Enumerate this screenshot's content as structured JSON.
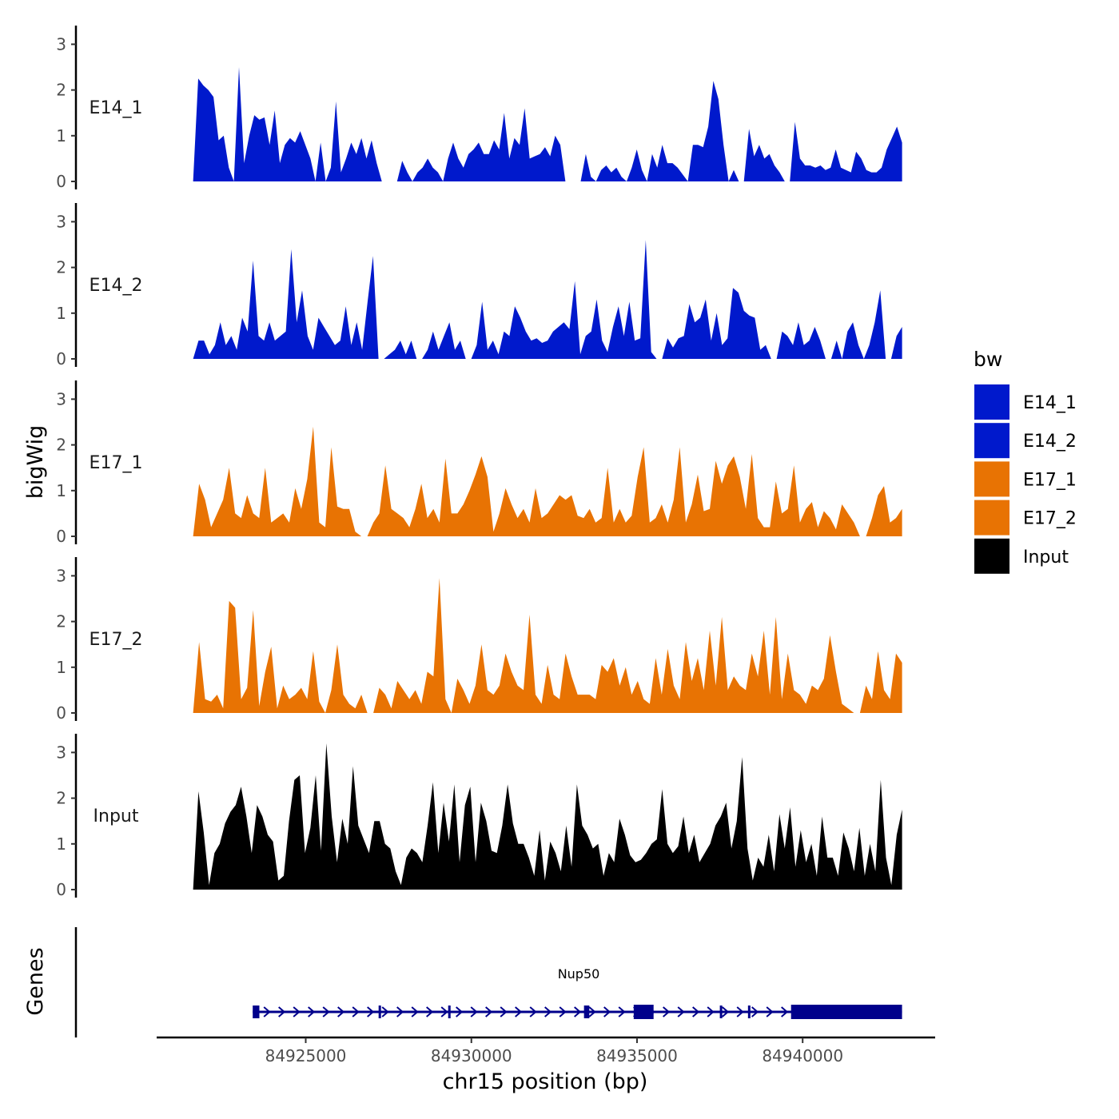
{
  "chart_data": {
    "type": "area",
    "title": "",
    "xlabel": "chr15 position (bp)",
    "ylabel": "bigWig",
    "genes_label": "Genes",
    "xlim": [
      84920500,
      84944000
    ],
    "data_xrange": [
      84921600,
      84943000
    ],
    "xticks": [
      84925000,
      84930000,
      84935000,
      84940000
    ],
    "xtick_labels": [
      "84925000",
      "84930000",
      "84935000",
      "84940000"
    ],
    "ylim": [
      0,
      3.3
    ],
    "yticks": [
      0,
      1,
      2,
      3
    ],
    "ytick_labels": [
      "0",
      "1",
      "2",
      "3"
    ],
    "legend": {
      "title": "bw",
      "position": "right",
      "entries": [
        {
          "name": "E14_1",
          "color": "#0019CC"
        },
        {
          "name": "E14_2",
          "color": "#0019CC"
        },
        {
          "name": "E17_1",
          "color": "#E87303"
        },
        {
          "name": "E17_2",
          "color": "#E87303"
        },
        {
          "name": "Input",
          "color": "#000000"
        }
      ]
    },
    "series": [
      {
        "name": "E14_1",
        "color": "#0019CC",
        "values": [
          0,
          2.25,
          2.1,
          2.0,
          1.85,
          0.9,
          1.0,
          0.3,
          0,
          2.5,
          0.4,
          1.0,
          1.45,
          1.35,
          1.4,
          0.8,
          1.55,
          0.4,
          0.8,
          0.95,
          0.85,
          1.1,
          0.8,
          0.5,
          0,
          0.85,
          0,
          0.3,
          1.75,
          0.2,
          0.5,
          0.85,
          0.6,
          0.95,
          0.5,
          0.9,
          0.4,
          0,
          0,
          0,
          0,
          0.45,
          0.2,
          0,
          0.2,
          0.3,
          0.5,
          0.3,
          0.2,
          0,
          0.5,
          0.85,
          0.5,
          0.3,
          0.6,
          0.7,
          0.85,
          0.6,
          0.6,
          0.9,
          0.7,
          1.5,
          0.5,
          0.95,
          0.8,
          1.6,
          0.5,
          0.55,
          0.6,
          0.75,
          0.55,
          1.0,
          0.8,
          0,
          0,
          0,
          0,
          0.6,
          0.1,
          0,
          0.25,
          0.35,
          0.2,
          0.3,
          0.1,
          0,
          0.3,
          0.7,
          0.25,
          0,
          0.6,
          0.3,
          0.8,
          0.4,
          0.4,
          0.3,
          0.15,
          0,
          0.8,
          0.8,
          0.75,
          1.2,
          2.2,
          1.8,
          0.8,
          0,
          0.25,
          0,
          0,
          1.15,
          0.55,
          0.8,
          0.5,
          0.6,
          0.35,
          0.2,
          0,
          0,
          1.3,
          0.5,
          0.35,
          0.35,
          0.3,
          0.35,
          0.25,
          0.3,
          0.7,
          0.3,
          0.25,
          0.2,
          0.65,
          0.5,
          0.25,
          0.2,
          0.2,
          0.3,
          0.7,
          0.95,
          1.2,
          0.85
        ]
      },
      {
        "name": "E14_2",
        "color": "#0019CC",
        "values": [
          0,
          0.4,
          0.4,
          0.1,
          0.3,
          0.8,
          0.3,
          0.5,
          0.2,
          0.9,
          0.6,
          2.15,
          0.5,
          0.4,
          0.8,
          0.4,
          0.5,
          0.6,
          2.4,
          0.8,
          1.5,
          0.5,
          0.2,
          0.9,
          0.7,
          0.5,
          0.3,
          0.4,
          1.15,
          0.3,
          0.8,
          0.2,
          1.25,
          2.25,
          0,
          0,
          0.1,
          0.2,
          0.4,
          0.1,
          0.4,
          0,
          0,
          0.2,
          0.6,
          0.2,
          0.5,
          0.8,
          0.2,
          0.4,
          0,
          0,
          0.3,
          1.25,
          0.2,
          0.4,
          0.1,
          0.6,
          0.5,
          1.15,
          0.9,
          0.6,
          0.4,
          0.45,
          0.35,
          0.4,
          0.6,
          0.7,
          0.8,
          0.65,
          1.7,
          0.1,
          0.5,
          0.6,
          1.3,
          0.4,
          0.15,
          0.7,
          1.15,
          0.5,
          1.25,
          0.4,
          0.45,
          2.6,
          0.15,
          0,
          0,
          0.45,
          0.25,
          0.45,
          0.5,
          1.2,
          0.8,
          0.9,
          1.3,
          0.4,
          1.0,
          0.3,
          0.45,
          1.55,
          1.45,
          1.05,
          0.95,
          0.9,
          0.2,
          0.3,
          0,
          0,
          0.6,
          0.5,
          0.3,
          0.8,
          0.3,
          0.4,
          0.7,
          0.4,
          0,
          0,
          0.4,
          0,
          0.6,
          0.8,
          0.3,
          0,
          0.3,
          0.8,
          1.5,
          0,
          0,
          0.5,
          0.7
        ]
      },
      {
        "name": "E17_1",
        "color": "#E87303",
        "values": [
          0,
          1.15,
          0.8,
          0.2,
          0.5,
          0.8,
          1.5,
          0.5,
          0.4,
          0.9,
          0.5,
          0.4,
          1.5,
          0.3,
          0.4,
          0.5,
          0.3,
          1.05,
          0.6,
          1.25,
          2.4,
          0.3,
          0.2,
          1.95,
          0.65,
          0.6,
          0.6,
          0.1,
          0,
          0,
          0.3,
          0.5,
          1.55,
          0.6,
          0.5,
          0.4,
          0.2,
          0.6,
          1.15,
          0.4,
          0.6,
          0.3,
          1.7,
          0.5,
          0.5,
          0.7,
          1.0,
          1.35,
          1.75,
          1.3,
          0.1,
          0.5,
          1.05,
          0.7,
          0.4,
          0.6,
          0.3,
          1.05,
          0.4,
          0.5,
          0.7,
          0.9,
          0.8,
          0.9,
          0.45,
          0.4,
          0.6,
          0.3,
          0.4,
          1.5,
          0.3,
          0.6,
          0.3,
          0.45,
          1.3,
          1.95,
          0.3,
          0.4,
          0.7,
          0.3,
          0.8,
          1.95,
          0.3,
          0.7,
          1.35,
          0.55,
          0.6,
          1.65,
          1.15,
          1.55,
          1.75,
          1.3,
          0.6,
          1.8,
          0.4,
          0.2,
          0.2,
          1.2,
          0.5,
          0.6,
          1.55,
          0.3,
          0.6,
          0.75,
          0.2,
          0.55,
          0.4,
          0.15,
          0.7,
          0.5,
          0.3,
          0,
          0,
          0.4,
          0.9,
          1.1,
          0.3,
          0.4,
          0.6
        ]
      },
      {
        "name": "E17_2",
        "color": "#E87303",
        "values": [
          0,
          1.55,
          0.3,
          0.25,
          0.4,
          0.1,
          2.45,
          2.3,
          0.3,
          0.55,
          2.25,
          0.15,
          0.9,
          1.45,
          0.1,
          0.6,
          0.3,
          0.4,
          0.55,
          0.3,
          1.35,
          0.25,
          0,
          0.5,
          1.5,
          0.4,
          0.2,
          0.1,
          0.4,
          0,
          0,
          0.55,
          0.4,
          0.1,
          0.7,
          0.5,
          0.3,
          0.5,
          0.2,
          0.9,
          0.8,
          2.95,
          0.3,
          0,
          0.75,
          0.5,
          0.2,
          0.6,
          1.5,
          0.5,
          0.4,
          0.6,
          1.3,
          0.9,
          0.6,
          0.5,
          2.15,
          0.4,
          0.2,
          1.05,
          0.4,
          0.3,
          1.3,
          0.8,
          0.4,
          0.4,
          0.4,
          0.3,
          1.05,
          0.9,
          1.2,
          0.6,
          1.0,
          0.4,
          0.7,
          0.3,
          0.2,
          1.2,
          0.4,
          1.4,
          0.6,
          0.3,
          1.55,
          0.7,
          1.2,
          0.5,
          1.8,
          0.6,
          2.1,
          0.5,
          0.8,
          0.6,
          0.5,
          1.3,
          0.8,
          1.8,
          0.4,
          2.1,
          0.3,
          1.3,
          0.5,
          0.4,
          0.2,
          0.6,
          0.5,
          0.75,
          1.7,
          0.9,
          0.2,
          0.1,
          0,
          0,
          0.6,
          0.3,
          1.35,
          0.5,
          0.3,
          1.3,
          1.1
        ]
      },
      {
        "name": "Input",
        "color": "#000000",
        "values": [
          0,
          2.15,
          1.25,
          0.1,
          0.8,
          1.0,
          1.45,
          1.7,
          1.85,
          2.25,
          1.6,
          0.8,
          1.85,
          1.6,
          1.2,
          1.05,
          0.2,
          0.3,
          1.5,
          2.4,
          2.5,
          0.8,
          1.35,
          2.5,
          0.85,
          3.2,
          1.6,
          0.6,
          1.55,
          1.0,
          2.7,
          1.4,
          1.1,
          0.8,
          1.5,
          1.5,
          1.0,
          0.9,
          0.4,
          0.1,
          0.7,
          0.9,
          0.8,
          0.6,
          1.4,
          2.35,
          0.8,
          1.9,
          1.05,
          2.3,
          0.6,
          1.85,
          2.25,
          0.6,
          1.9,
          1.5,
          0.85,
          0.8,
          1.4,
          2.3,
          1.45,
          1.0,
          1.0,
          0.7,
          0.3,
          1.3,
          0.2,
          1.05,
          0.8,
          0.4,
          1.4,
          0.5,
          2.3,
          1.4,
          1.2,
          0.9,
          1.0,
          0.3,
          0.8,
          0.6,
          1.55,
          1.2,
          0.75,
          0.6,
          0.65,
          0.8,
          1.0,
          1.1,
          2.2,
          1.0,
          0.8,
          0.95,
          1.6,
          0.8,
          1.2,
          0.6,
          0.8,
          1.0,
          1.4,
          1.6,
          1.9,
          0.9,
          1.5,
          2.9,
          0.9,
          0.2,
          0.7,
          0.5,
          1.2,
          0.4,
          1.65,
          0.9,
          1.8,
          0.5,
          1.3,
          0.6,
          1.0,
          0.3,
          1.6,
          0.7,
          0.7,
          0.3,
          1.25,
          0.9,
          0.4,
          1.35,
          0.3,
          1.0,
          0.4,
          2.4,
          0.7,
          0.1,
          1.2,
          1.75
        ]
      }
    ],
    "gene_track": {
      "gene_name": "Nup50",
      "strand": "+",
      "start": 84923400,
      "end": 84943000,
      "color": "#00008B",
      "exons": [
        {
          "start": 84923400,
          "end": 84923600,
          "type": "utr"
        },
        {
          "start": 84927200,
          "end": 84927250,
          "type": "cds"
        },
        {
          "start": 84929300,
          "end": 84929360,
          "type": "cds"
        },
        {
          "start": 84933400,
          "end": 84933560,
          "type": "cds"
        },
        {
          "start": 84934900,
          "end": 84935500,
          "type": "cds"
        },
        {
          "start": 84937500,
          "end": 84937560,
          "type": "cds"
        },
        {
          "start": 84938350,
          "end": 84938420,
          "type": "cds"
        },
        {
          "start": 84939650,
          "end": 84943000,
          "type": "cds"
        }
      ]
    }
  }
}
